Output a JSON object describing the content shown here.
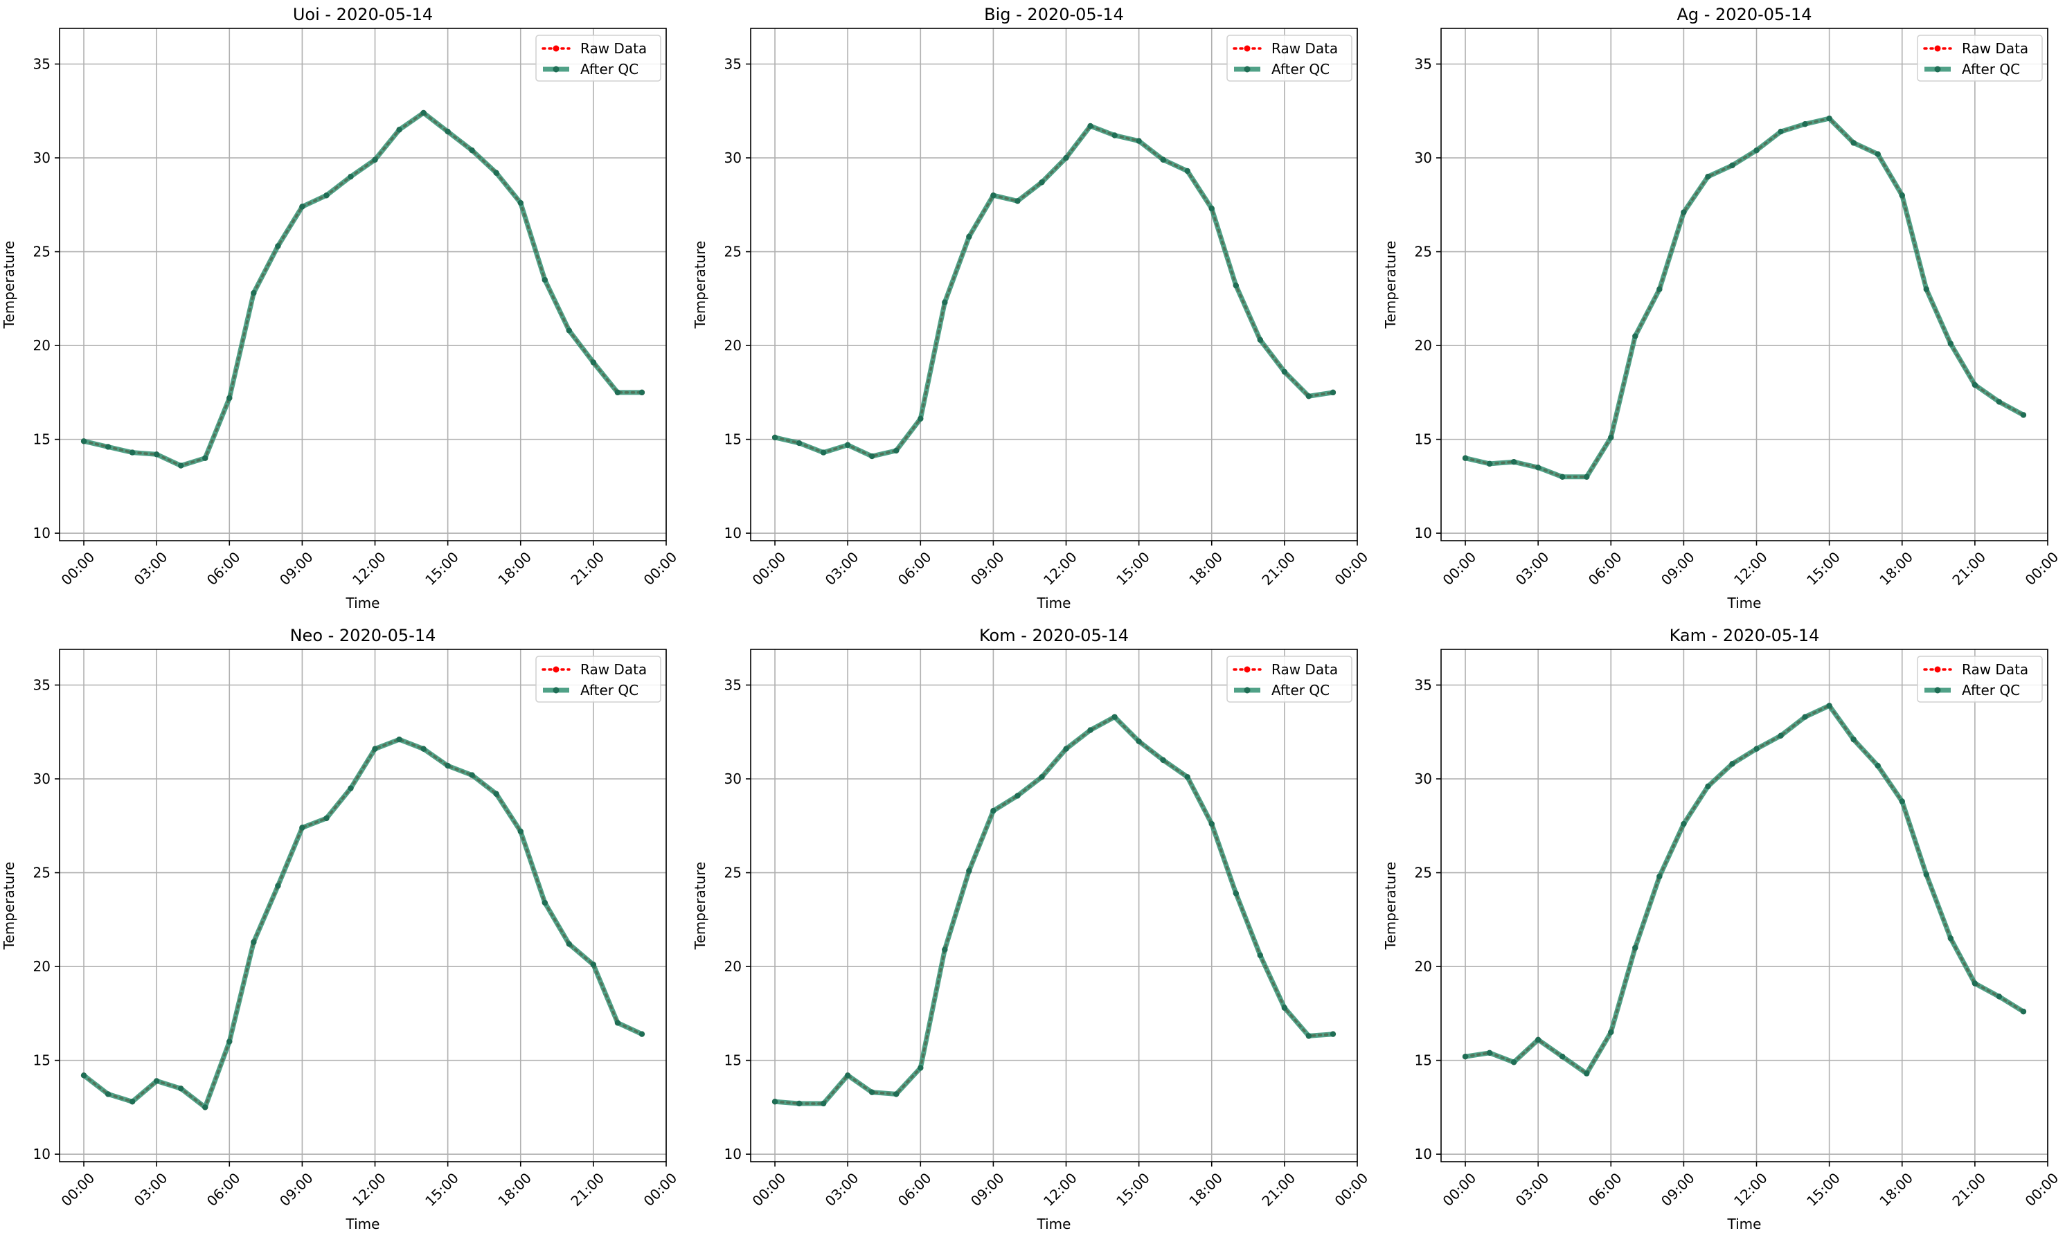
{
  "chart_data": [
    {
      "type": "line",
      "title": "Uoi - 2020-05-14",
      "xlabel": "Time",
      "ylabel": "Temperature",
      "ylim": [
        9.6,
        36.9
      ],
      "yticks": [
        "10",
        "15",
        "20",
        "25",
        "30",
        "35"
      ],
      "xlim": [
        "-01:00",
        "24:00"
      ],
      "xticks": [
        "00:00",
        "03:00",
        "06:00",
        "09:00",
        "12:00",
        "15:00",
        "18:00",
        "21:00",
        "00:00"
      ],
      "grid": true,
      "legend_position": "top-right",
      "x": [
        "00:00",
        "01:00",
        "02:00",
        "03:00",
        "04:00",
        "05:00",
        "06:00",
        "07:00",
        "08:00",
        "09:00",
        "10:00",
        "11:00",
        "12:00",
        "13:00",
        "14:00",
        "15:00",
        "16:00",
        "17:00",
        "18:00",
        "19:00",
        "20:00",
        "21:00",
        "22:00",
        "23:00"
      ],
      "series": [
        {
          "name": "Raw Data",
          "color": "#ff0000",
          "values": [
            14.9,
            14.6,
            14.3,
            14.2,
            13.6,
            14.0,
            17.2,
            22.8,
            25.3,
            27.4,
            28.0,
            29.0,
            29.9,
            31.5,
            32.4,
            31.4,
            30.4,
            29.2,
            27.6,
            23.5,
            20.8,
            19.1,
            17.5,
            17.5
          ]
        },
        {
          "name": "After QC",
          "color": "#2a8c6d",
          "values": [
            14.9,
            14.6,
            14.3,
            14.2,
            13.6,
            14.0,
            17.2,
            22.8,
            25.3,
            27.4,
            28.0,
            29.0,
            29.9,
            31.5,
            32.4,
            31.4,
            30.4,
            29.2,
            27.6,
            23.5,
            20.8,
            19.1,
            17.5,
            17.5
          ]
        }
      ]
    },
    {
      "type": "line",
      "title": "Big - 2020-05-14",
      "xlabel": "Time",
      "ylabel": "Temperature",
      "ylim": [
        9.6,
        36.9
      ],
      "yticks": [
        "10",
        "15",
        "20",
        "25",
        "30",
        "35"
      ],
      "xlim": [
        "-01:00",
        "24:00"
      ],
      "xticks": [
        "00:00",
        "03:00",
        "06:00",
        "09:00",
        "12:00",
        "15:00",
        "18:00",
        "21:00",
        "00:00"
      ],
      "grid": true,
      "legend_position": "top-right",
      "x": [
        "00:00",
        "01:00",
        "02:00",
        "03:00",
        "04:00",
        "05:00",
        "06:00",
        "07:00",
        "08:00",
        "09:00",
        "10:00",
        "11:00",
        "12:00",
        "13:00",
        "14:00",
        "15:00",
        "16:00",
        "17:00",
        "18:00",
        "19:00",
        "20:00",
        "21:00",
        "22:00",
        "23:00"
      ],
      "series": [
        {
          "name": "Raw Data",
          "color": "#ff0000",
          "values": [
            15.1,
            14.8,
            14.3,
            14.7,
            14.1,
            14.4,
            16.1,
            22.3,
            25.8,
            28.0,
            27.7,
            28.7,
            30.0,
            31.7,
            31.2,
            30.9,
            29.9,
            29.3,
            27.3,
            23.2,
            20.3,
            18.6,
            17.3,
            17.5
          ]
        },
        {
          "name": "After QC",
          "color": "#2a8c6d",
          "values": [
            15.1,
            14.8,
            14.3,
            14.7,
            14.1,
            14.4,
            16.1,
            22.3,
            25.8,
            28.0,
            27.7,
            28.7,
            30.0,
            31.7,
            31.2,
            30.9,
            29.9,
            29.3,
            27.3,
            23.2,
            20.3,
            18.6,
            17.3,
            17.5
          ]
        }
      ]
    },
    {
      "type": "line",
      "title": "Ag - 2020-05-14",
      "xlabel": "Time",
      "ylabel": "Temperature",
      "ylim": [
        9.6,
        36.9
      ],
      "yticks": [
        "10",
        "15",
        "20",
        "25",
        "30",
        "35"
      ],
      "xlim": [
        "-01:00",
        "24:00"
      ],
      "xticks": [
        "00:00",
        "03:00",
        "06:00",
        "09:00",
        "12:00",
        "15:00",
        "18:00",
        "21:00",
        "00:00"
      ],
      "grid": true,
      "legend_position": "top-right",
      "x": [
        "00:00",
        "01:00",
        "02:00",
        "03:00",
        "04:00",
        "05:00",
        "06:00",
        "07:00",
        "08:00",
        "09:00",
        "10:00",
        "11:00",
        "12:00",
        "13:00",
        "14:00",
        "15:00",
        "16:00",
        "17:00",
        "18:00",
        "19:00",
        "20:00",
        "21:00",
        "22:00",
        "23:00"
      ],
      "series": [
        {
          "name": "Raw Data",
          "color": "#ff0000",
          "values": [
            14.0,
            13.7,
            13.8,
            13.5,
            13.0,
            13.0,
            15.1,
            20.5,
            23.0,
            27.1,
            29.0,
            29.6,
            30.4,
            31.4,
            31.8,
            32.1,
            30.8,
            30.2,
            28.0,
            23.0,
            20.1,
            17.9,
            17.0,
            16.3
          ]
        },
        {
          "name": "After QC",
          "color": "#2a8c6d",
          "values": [
            14.0,
            13.7,
            13.8,
            13.5,
            13.0,
            13.0,
            15.1,
            20.5,
            23.0,
            27.1,
            29.0,
            29.6,
            30.4,
            31.4,
            31.8,
            32.1,
            30.8,
            30.2,
            28.0,
            23.0,
            20.1,
            17.9,
            17.0,
            16.3
          ]
        }
      ]
    },
    {
      "type": "line",
      "title": "Neo - 2020-05-14",
      "xlabel": "Time",
      "ylabel": "Temperature",
      "ylim": [
        9.6,
        36.9
      ],
      "yticks": [
        "10",
        "15",
        "20",
        "25",
        "30",
        "35"
      ],
      "xlim": [
        "-01:00",
        "24:00"
      ],
      "xticks": [
        "00:00",
        "03:00",
        "06:00",
        "09:00",
        "12:00",
        "15:00",
        "18:00",
        "21:00",
        "00:00"
      ],
      "grid": true,
      "legend_position": "top-right",
      "x": [
        "00:00",
        "01:00",
        "02:00",
        "03:00",
        "04:00",
        "05:00",
        "06:00",
        "07:00",
        "08:00",
        "09:00",
        "10:00",
        "11:00",
        "12:00",
        "13:00",
        "14:00",
        "15:00",
        "16:00",
        "17:00",
        "18:00",
        "19:00",
        "20:00",
        "21:00",
        "22:00",
        "23:00"
      ],
      "series": [
        {
          "name": "Raw Data",
          "color": "#ff0000",
          "values": [
            14.2,
            13.2,
            12.8,
            13.9,
            13.5,
            12.5,
            16.0,
            21.3,
            24.3,
            27.4,
            27.9,
            29.5,
            31.6,
            32.1,
            31.6,
            30.7,
            30.2,
            29.2,
            27.2,
            23.4,
            21.2,
            20.1,
            17.0,
            16.4
          ]
        },
        {
          "name": "After QC",
          "color": "#2a8c6d",
          "values": [
            14.2,
            13.2,
            12.8,
            13.9,
            13.5,
            12.5,
            16.0,
            21.3,
            24.3,
            27.4,
            27.9,
            29.5,
            31.6,
            32.1,
            31.6,
            30.7,
            30.2,
            29.2,
            27.2,
            23.4,
            21.2,
            20.1,
            17.0,
            16.4
          ]
        }
      ]
    },
    {
      "type": "line",
      "title": "Kom - 2020-05-14",
      "xlabel": "Time",
      "ylabel": "Temperature",
      "ylim": [
        9.6,
        36.9
      ],
      "yticks": [
        "10",
        "15",
        "20",
        "25",
        "30",
        "35"
      ],
      "xlim": [
        "-01:00",
        "24:00"
      ],
      "xticks": [
        "00:00",
        "03:00",
        "06:00",
        "09:00",
        "12:00",
        "15:00",
        "18:00",
        "21:00",
        "00:00"
      ],
      "grid": true,
      "legend_position": "top-right",
      "x": [
        "00:00",
        "01:00",
        "02:00",
        "03:00",
        "04:00",
        "05:00",
        "06:00",
        "07:00",
        "08:00",
        "09:00",
        "10:00",
        "11:00",
        "12:00",
        "13:00",
        "14:00",
        "15:00",
        "16:00",
        "17:00",
        "18:00",
        "19:00",
        "20:00",
        "21:00",
        "22:00",
        "23:00"
      ],
      "series": [
        {
          "name": "Raw Data",
          "color": "#ff0000",
          "values": [
            12.8,
            12.7,
            12.7,
            14.2,
            13.3,
            13.2,
            14.6,
            20.9,
            25.1,
            28.3,
            29.1,
            30.1,
            31.6,
            32.6,
            33.3,
            32.0,
            31.0,
            30.1,
            27.6,
            23.9,
            20.6,
            17.8,
            16.3,
            16.4
          ]
        },
        {
          "name": "After QC",
          "color": "#2a8c6d",
          "values": [
            12.8,
            12.7,
            12.7,
            14.2,
            13.3,
            13.2,
            14.6,
            20.9,
            25.1,
            28.3,
            29.1,
            30.1,
            31.6,
            32.6,
            33.3,
            32.0,
            31.0,
            30.1,
            27.6,
            23.9,
            20.6,
            17.8,
            16.3,
            16.4
          ]
        }
      ]
    },
    {
      "type": "line",
      "title": "Kam - 2020-05-14",
      "xlabel": "Time",
      "ylabel": "Temperature",
      "ylim": [
        9.6,
        36.9
      ],
      "yticks": [
        "10",
        "15",
        "20",
        "25",
        "30",
        "35"
      ],
      "xlim": [
        "-01:00",
        "24:00"
      ],
      "xticks": [
        "00:00",
        "03:00",
        "06:00",
        "09:00",
        "12:00",
        "15:00",
        "18:00",
        "21:00",
        "00:00"
      ],
      "grid": true,
      "legend_position": "top-right",
      "x": [
        "00:00",
        "01:00",
        "02:00",
        "03:00",
        "04:00",
        "05:00",
        "06:00",
        "07:00",
        "08:00",
        "09:00",
        "10:00",
        "11:00",
        "12:00",
        "13:00",
        "14:00",
        "15:00",
        "16:00",
        "17:00",
        "18:00",
        "19:00",
        "20:00",
        "21:00",
        "22:00",
        "23:00"
      ],
      "series": [
        {
          "name": "Raw Data",
          "color": "#ff0000",
          "values": [
            15.2,
            15.4,
            14.9,
            16.1,
            15.2,
            14.3,
            16.5,
            21.0,
            24.8,
            27.6,
            29.6,
            30.8,
            31.6,
            32.3,
            33.3,
            33.9,
            32.1,
            30.7,
            28.8,
            24.9,
            21.5,
            19.1,
            18.4,
            17.6
          ]
        },
        {
          "name": "After QC",
          "color": "#2a8c6d",
          "values": [
            15.2,
            15.4,
            14.9,
            16.1,
            15.2,
            14.3,
            16.5,
            21.0,
            24.8,
            27.6,
            29.6,
            30.8,
            31.6,
            32.3,
            33.3,
            33.9,
            32.1,
            30.7,
            28.8,
            24.9,
            21.5,
            19.1,
            18.4,
            17.6
          ]
        }
      ]
    }
  ]
}
